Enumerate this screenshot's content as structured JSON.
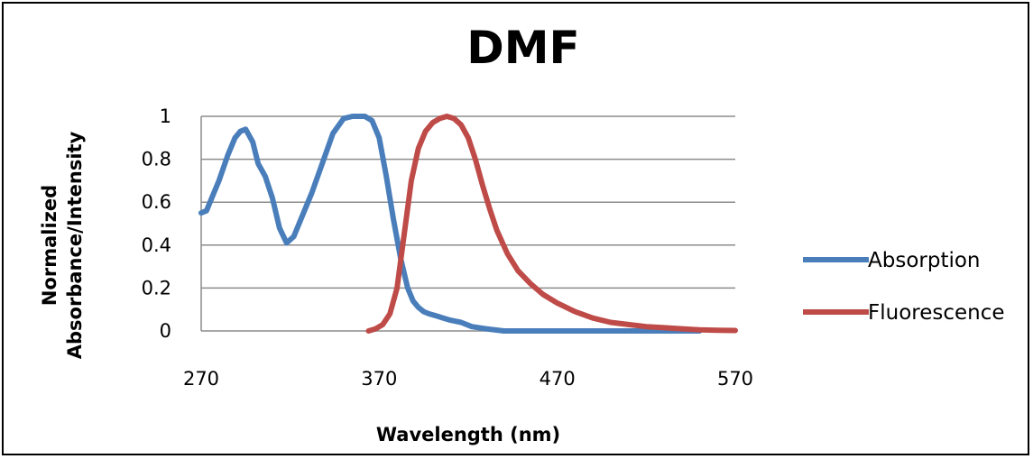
{
  "chart_data": {
    "type": "line",
    "title": "DMF",
    "xlabel": "Wavelength (nm)",
    "ylabel_lines": [
      "Normalized",
      "Absorbance/Intensity"
    ],
    "xlim": [
      270,
      570
    ],
    "ylim": [
      0,
      1
    ],
    "x_ticks": [
      270,
      370,
      470,
      570
    ],
    "y_ticks": [
      0,
      0.2,
      0.4,
      0.6,
      0.8,
      1
    ],
    "y_tick_labels": [
      "0",
      "0.2",
      "0.4",
      "0.6",
      "0.8",
      "1"
    ],
    "grid": "horizontal",
    "legend_position": "right",
    "series": [
      {
        "name": "Absorption",
        "color": "#4a7ebb",
        "x": [
          270,
          273,
          276,
          280,
          285,
          289,
          292,
          295,
          299,
          302,
          306,
          310,
          314,
          318,
          322,
          326,
          332,
          338,
          344,
          350,
          355,
          358,
          362,
          366,
          370,
          374,
          378,
          382,
          386,
          389,
          392,
          395,
          398,
          402,
          406,
          410,
          416,
          422,
          430,
          440,
          450,
          470,
          500,
          530,
          550
        ],
        "y": [
          0.55,
          0.56,
          0.62,
          0.7,
          0.82,
          0.9,
          0.93,
          0.94,
          0.88,
          0.78,
          0.72,
          0.62,
          0.48,
          0.41,
          0.44,
          0.52,
          0.64,
          0.78,
          0.92,
          0.99,
          1.0,
          1.0,
          1.0,
          0.98,
          0.9,
          0.72,
          0.52,
          0.34,
          0.2,
          0.14,
          0.11,
          0.09,
          0.08,
          0.07,
          0.06,
          0.05,
          0.04,
          0.02,
          0.01,
          0.0,
          0.0,
          0.0,
          0.0,
          0.0,
          0.0
        ]
      },
      {
        "name": "Fluorescence",
        "color": "#be4b48",
        "x": [
          364,
          368,
          372,
          376,
          380,
          384,
          388,
          392,
          396,
          400,
          404,
          408,
          412,
          416,
          420,
          424,
          428,
          432,
          436,
          442,
          448,
          455,
          462,
          470,
          480,
          490,
          500,
          510,
          520,
          530,
          540,
          550,
          560,
          570
        ],
        "y": [
          0.0,
          0.01,
          0.03,
          0.08,
          0.2,
          0.45,
          0.7,
          0.85,
          0.93,
          0.97,
          0.99,
          1.0,
          0.99,
          0.96,
          0.9,
          0.8,
          0.68,
          0.57,
          0.47,
          0.36,
          0.28,
          0.22,
          0.17,
          0.13,
          0.09,
          0.06,
          0.04,
          0.03,
          0.02,
          0.015,
          0.01,
          0.005,
          0.003,
          0.002
        ]
      }
    ]
  }
}
